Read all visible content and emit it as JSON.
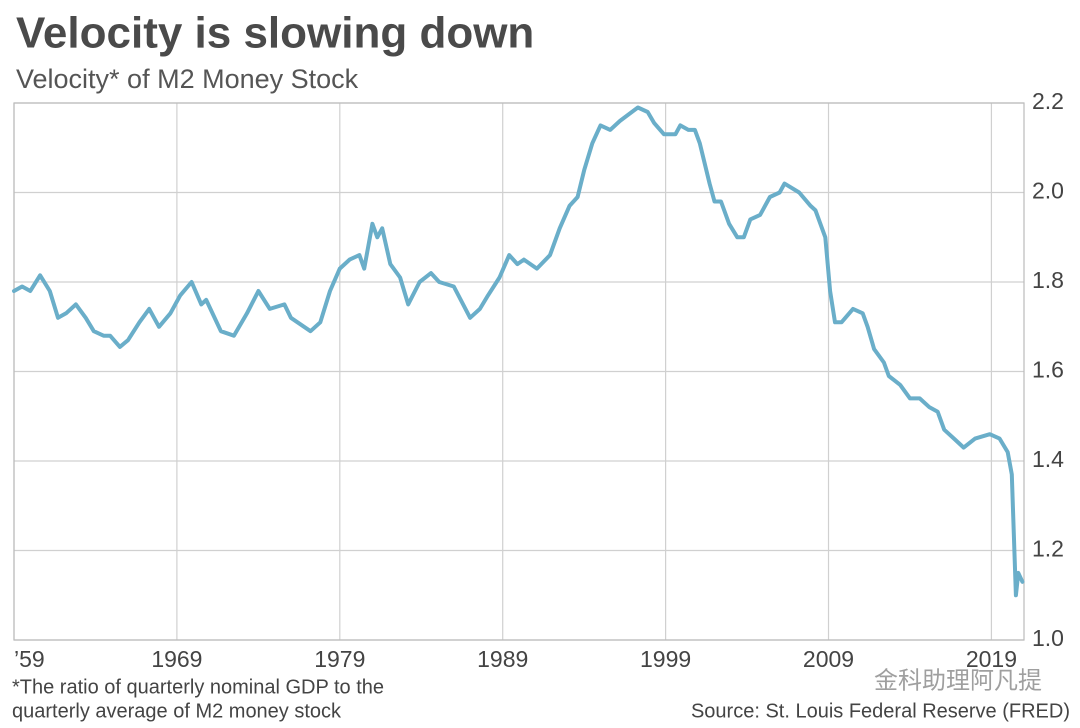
{
  "chart_data": {
    "type": "line",
    "title": "Velocity is slowing down",
    "subtitle": "Velocity* of M2 Money Stock",
    "footnote": [
      "*The ratio of quarterly nominal GDP to the",
      "quarterly average of M2 money stock"
    ],
    "source": "Source: St. Louis Federal Reserve (FRED)",
    "watermark": "金科助理阿凡提",
    "color": "#6aaec9",
    "grid": true,
    "xlim": [
      1959,
      2021
    ],
    "ylim": [
      1.0,
      2.2
    ],
    "xticks": [
      {
        "value": 1959,
        "label": "’59"
      },
      1969,
      1979,
      1989,
      1999,
      2009,
      2019
    ],
    "yticks": [
      {
        "value": 1,
        "label": "1.0"
      },
      1.2,
      1.4,
      1.6,
      1.8,
      {
        "value": 2,
        "label": "2.0"
      },
      2.2
    ],
    "x": [
      1959,
      1959.5,
      1960,
      1960.6,
      1961.2,
      1961.7,
      1962.2,
      1962.8,
      1963.4,
      1963.9,
      1964.5,
      1964.9,
      1965.5,
      1966,
      1966.7,
      1967.3,
      1967.9,
      1968.6,
      1969.2,
      1969.9,
      1970.5,
      1970.8,
      1971.7,
      1972.5,
      1973.3,
      1974,
      1974.7,
      1975.6,
      1976,
      1977.2,
      1977.8,
      1978.4,
      1979,
      1979.6,
      1980.2,
      1980.5,
      1981,
      1981.3,
      1981.6,
      1982.1,
      1982.7,
      1983.2,
      1983.9,
      1984.6,
      1985.1,
      1986,
      1987,
      1987.6,
      1988.1,
      1988.8,
      1989.4,
      1989.9,
      1990.3,
      1991.1,
      1991.9,
      1992.5,
      1993.1,
      1993.6,
      1994,
      1994.5,
      1995,
      1995.6,
      1996.2,
      1997.3,
      1997.9,
      1998.3,
      1998.9,
      1999.6,
      1999.9,
      2000.4,
      2000.8,
      2001.1,
      2001.7,
      2002,
      2002.4,
      2002.9,
      2003.4,
      2003.8,
      2004.2,
      2004.8,
      2005.4,
      2006,
      2006.3,
      2007.2,
      2007.9,
      2008.2,
      2008.8,
      2009.1,
      2009.4,
      2009.8,
      2010.5,
      2011.1,
      2011.4,
      2011.8,
      2012.4,
      2012.7,
      2013.4,
      2014,
      2014.6,
      2015.2,
      2015.7,
      2016.1,
      2016.7,
      2017.3,
      2018,
      2018.9,
      2019.5,
      2020,
      2020.25,
      2020.5,
      2020.65,
      2020.9
    ],
    "values": [
      1.78,
      1.79,
      1.78,
      1.815,
      1.78,
      1.72,
      1.73,
      1.75,
      1.72,
      1.69,
      1.68,
      1.68,
      1.655,
      1.67,
      1.71,
      1.74,
      1.7,
      1.73,
      1.77,
      1.8,
      1.75,
      1.76,
      1.69,
      1.68,
      1.73,
      1.78,
      1.74,
      1.75,
      1.72,
      1.69,
      1.71,
      1.78,
      1.83,
      1.85,
      1.86,
      1.83,
      1.93,
      1.9,
      1.92,
      1.84,
      1.81,
      1.75,
      1.8,
      1.82,
      1.8,
      1.79,
      1.72,
      1.74,
      1.77,
      1.81,
      1.86,
      1.84,
      1.85,
      1.83,
      1.86,
      1.92,
      1.97,
      1.99,
      2.05,
      2.11,
      2.15,
      2.14,
      2.16,
      2.19,
      2.18,
      2.155,
      2.13,
      2.13,
      2.15,
      2.14,
      2.14,
      2.11,
      2.02,
      1.98,
      1.98,
      1.93,
      1.9,
      1.9,
      1.94,
      1.95,
      1.99,
      2.0,
      2.02,
      2.0,
      1.97,
      1.96,
      1.9,
      1.78,
      1.71,
      1.71,
      1.74,
      1.73,
      1.7,
      1.65,
      1.62,
      1.59,
      1.57,
      1.54,
      1.54,
      1.52,
      1.51,
      1.47,
      1.45,
      1.43,
      1.45,
      1.46,
      1.45,
      1.42,
      1.37,
      1.1,
      1.15,
      1.13
    ]
  }
}
